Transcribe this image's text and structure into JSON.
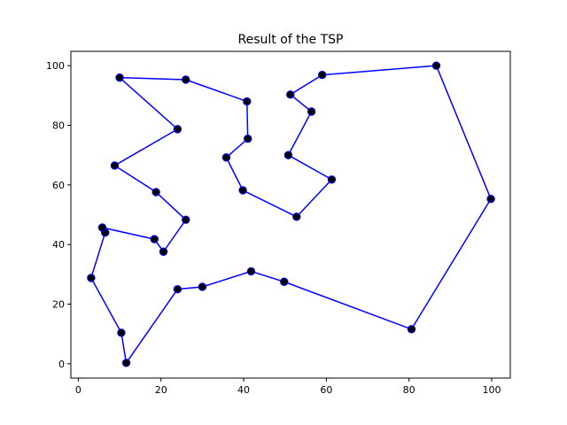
{
  "chart_data": {
    "type": "line",
    "title": "Result of the TSP",
    "xlabel": "",
    "ylabel": "",
    "xlim": [
      -1.8,
      104.5
    ],
    "ylim": [
      -4.8,
      104.8
    ],
    "xticks": [
      0,
      20,
      40,
      60,
      80,
      100
    ],
    "yticks": [
      0,
      20,
      40,
      60,
      80,
      100
    ],
    "grid": false,
    "line_color": "#0000ff",
    "marker_color": "#000000",
    "tour": [
      [
        10,
        96
      ],
      [
        26,
        95.3
      ],
      [
        40.8,
        88
      ],
      [
        41,
        75.5
      ],
      [
        35.8,
        69.2
      ],
      [
        39.8,
        58.2
      ],
      [
        52.8,
        49.3
      ],
      [
        61.3,
        61.8
      ],
      [
        50.8,
        70
      ],
      [
        56.4,
        84.6
      ],
      [
        51.3,
        90.3
      ],
      [
        59,
        96.9
      ],
      [
        86.6,
        100
      ],
      [
        99.8,
        55.3
      ],
      [
        80.6,
        11.6
      ],
      [
        49.8,
        27.5
      ],
      [
        41.8,
        31
      ],
      [
        30,
        25.8
      ],
      [
        24,
        25
      ],
      [
        11.6,
        0.3
      ],
      [
        10.4,
        10.4
      ],
      [
        3.1,
        28.8
      ],
      [
        6.5,
        44
      ],
      [
        5.8,
        45.7
      ],
      [
        18.4,
        41.8
      ],
      [
        20.6,
        37.6
      ],
      [
        26,
        48.3
      ],
      [
        18.8,
        57.6
      ],
      [
        8.8,
        66.5
      ],
      [
        24,
        78.7
      ],
      [
        10,
        96
      ]
    ]
  }
}
